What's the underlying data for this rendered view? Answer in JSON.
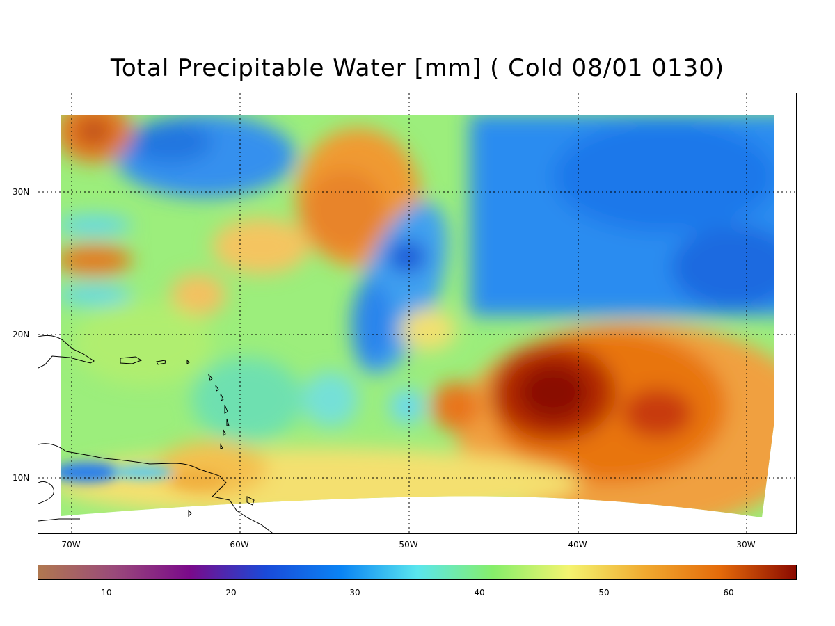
{
  "title": "Total Precipitable Water [mm]  (  Cold  08/01 0130)",
  "map": {
    "lon_ticks": [
      "70W",
      "60W",
      "50W",
      "40W",
      "30W"
    ],
    "lat_ticks": [
      "30N",
      "20N",
      "10N"
    ]
  },
  "colorbar": {
    "labels": [
      "10",
      "20",
      "30",
      "40",
      "50",
      "60"
    ],
    "colors": [
      "#b07850",
      "#9a4a7a",
      "#7a0a8a",
      "#1a4ad8",
      "#0a84f4",
      "#5ae6ee",
      "#86ee6a",
      "#f4f470",
      "#f0aa30",
      "#e46a0a",
      "#8a0a00"
    ]
  }
}
